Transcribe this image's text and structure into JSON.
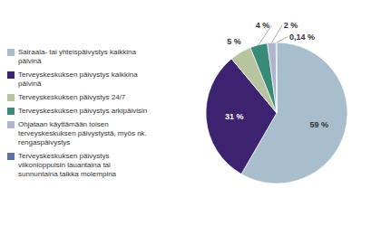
{
  "chart_data": {
    "type": "pie",
    "categories": [
      "Sairaala- tai yhteispäivystys kaikkina\npäivinä",
      "Terveyskeskuksen päivystys kaikkina\npäivinä",
      "Terveyskeskuksen päivystys 24/7",
      "Terveyskeskuksen päivystys arkipäivisin",
      "Ohjataan käyttämään toisen\nterveyskeskuksen päivystystä, myös nk.\nrengaspäivystys",
      "Terveyskeskuksen päivystys\nviikonloppuisin lauantaina tai\nsunnuntaina taikka molempina"
    ],
    "values": [
      59,
      31,
      5,
      4,
      2,
      0.14
    ],
    "value_labels": [
      "59 %",
      "31 %",
      "5 %",
      "4 %",
      "2 %",
      "0,14 %"
    ],
    "colors": [
      "#a8becc",
      "#3d2270",
      "#b8c4a0",
      "#3a8a78",
      "#b0b4cc",
      "#6070a8"
    ],
    "data_labels": true,
    "legend": "left"
  }
}
